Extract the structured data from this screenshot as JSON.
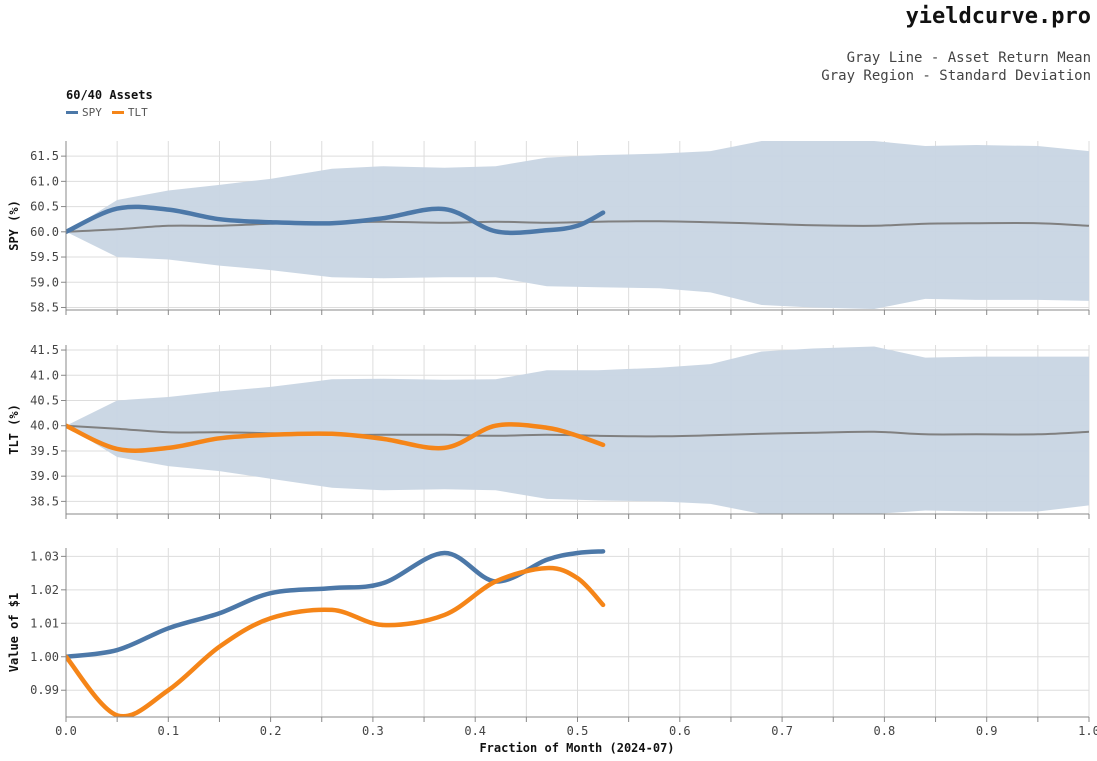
{
  "header": {
    "brand": "yieldcurve.pro",
    "note_line1": "Gray Line - Asset Return Mean",
    "note_line2": "Gray Region - Standard Deviation"
  },
  "legend": {
    "title": "60/40 Assets",
    "items": [
      {
        "name": "SPY",
        "color": "#4c78a8"
      },
      {
        "name": "TLT",
        "color": "#f58518"
      }
    ]
  },
  "colors": {
    "band": "#c8d5e3",
    "mean": "#808080",
    "spy": "#4c78a8",
    "tlt": "#f58518"
  },
  "chart_data": [
    {
      "type": "line",
      "ylabel": "SPY (%)",
      "ylim": [
        58.45,
        61.8
      ],
      "yticks": [
        58.5,
        59.0,
        59.5,
        60.0,
        60.5,
        61.0,
        61.5
      ],
      "tick_decimals": 1,
      "xlim": [
        0,
        1
      ],
      "band": {
        "x": [
          0,
          0.05,
          0.1,
          0.15,
          0.2,
          0.26,
          0.31,
          0.37,
          0.42,
          0.47,
          0.52,
          0.58,
          0.63,
          0.68,
          0.73,
          0.79,
          0.84,
          0.89,
          0.95,
          1.0
        ],
        "upper": [
          60.0,
          60.63,
          60.82,
          60.93,
          61.05,
          61.25,
          61.3,
          61.27,
          61.3,
          61.47,
          61.52,
          61.55,
          61.6,
          61.8,
          61.85,
          61.8,
          61.7,
          61.72,
          61.7,
          61.6
        ],
        "lower": [
          60.0,
          59.5,
          59.45,
          59.33,
          59.24,
          59.1,
          59.08,
          59.1,
          59.1,
          58.92,
          58.9,
          58.88,
          58.8,
          58.55,
          58.5,
          58.47,
          58.67,
          58.65,
          58.65,
          58.63
        ]
      },
      "mean": {
        "x": [
          0,
          0.05,
          0.1,
          0.15,
          0.2,
          0.26,
          0.31,
          0.37,
          0.42,
          0.47,
          0.52,
          0.58,
          0.63,
          0.68,
          0.73,
          0.79,
          0.84,
          0.89,
          0.95,
          1.0
        ],
        "y": [
          60.0,
          60.05,
          60.12,
          60.12,
          60.16,
          60.18,
          60.2,
          60.18,
          60.2,
          60.18,
          60.2,
          60.21,
          60.19,
          60.16,
          60.13,
          60.12,
          60.16,
          60.17,
          60.17,
          60.12
        ]
      },
      "series": [
        {
          "name": "SPY",
          "x": [
            0,
            0.05,
            0.1,
            0.15,
            0.2,
            0.26,
            0.31,
            0.37,
            0.42,
            0.47,
            0.5,
            0.525
          ],
          "y": [
            60.0,
            60.46,
            60.44,
            60.25,
            60.19,
            60.17,
            60.27,
            60.45,
            60.01,
            60.03,
            60.12,
            60.38
          ]
        }
      ]
    },
    {
      "type": "line",
      "ylabel": "TLT (%)",
      "ylim": [
        38.25,
        41.6
      ],
      "yticks": [
        38.5,
        39.0,
        39.5,
        40.0,
        40.5,
        41.0,
        41.5
      ],
      "tick_decimals": 1,
      "xlim": [
        0,
        1
      ],
      "band": {
        "x": [
          0,
          0.05,
          0.1,
          0.15,
          0.2,
          0.26,
          0.31,
          0.37,
          0.42,
          0.47,
          0.52,
          0.58,
          0.63,
          0.68,
          0.73,
          0.79,
          0.84,
          0.89,
          0.95,
          1.0
        ],
        "upper": [
          40.0,
          40.5,
          40.57,
          40.68,
          40.77,
          40.92,
          40.93,
          40.91,
          40.92,
          41.1,
          41.1,
          41.15,
          41.22,
          41.47,
          41.53,
          41.57,
          41.35,
          41.37,
          41.37,
          41.37
        ],
        "lower": [
          40.0,
          39.38,
          39.2,
          39.1,
          38.95,
          38.77,
          38.72,
          38.74,
          38.72,
          38.55,
          38.52,
          38.5,
          38.45,
          38.25,
          38.25,
          38.25,
          38.32,
          38.3,
          38.3,
          38.42
        ]
      },
      "mean": {
        "x": [
          0,
          0.05,
          0.1,
          0.15,
          0.2,
          0.26,
          0.31,
          0.37,
          0.42,
          0.47,
          0.52,
          0.58,
          0.63,
          0.68,
          0.73,
          0.79,
          0.84,
          0.89,
          0.95,
          1.0
        ],
        "y": [
          40.0,
          39.94,
          39.87,
          39.87,
          39.85,
          39.82,
          39.82,
          39.82,
          39.8,
          39.82,
          39.8,
          39.79,
          39.81,
          39.84,
          39.86,
          39.88,
          39.83,
          39.83,
          39.83,
          39.88
        ]
      },
      "series": [
        {
          "name": "TLT",
          "x": [
            0,
            0.05,
            0.1,
            0.15,
            0.2,
            0.26,
            0.31,
            0.37,
            0.42,
            0.47,
            0.5,
            0.525
          ],
          "y": [
            40.0,
            39.54,
            39.56,
            39.75,
            39.82,
            39.84,
            39.74,
            39.56,
            40.0,
            39.96,
            39.8,
            39.62
          ]
        }
      ]
    },
    {
      "type": "line",
      "ylabel": "Value of $1",
      "xlabel": "Fraction of Month (2024-07)",
      "ylim": [
        0.982,
        1.0325
      ],
      "yticks": [
        0.99,
        1.0,
        1.01,
        1.02,
        1.03
      ],
      "tick_decimals": 2,
      "xlim": [
        0,
        1
      ],
      "xticks": [
        0.0,
        0.1,
        0.2,
        0.3,
        0.4,
        0.5,
        0.6,
        0.7,
        0.8,
        0.9,
        1.0
      ],
      "series": [
        {
          "name": "SPY",
          "x": [
            0,
            0.05,
            0.1,
            0.15,
            0.2,
            0.26,
            0.31,
            0.37,
            0.42,
            0.47,
            0.5,
            0.525
          ],
          "y": [
            1.0,
            1.002,
            1.0085,
            1.013,
            1.019,
            1.0205,
            1.022,
            1.031,
            1.0225,
            1.029,
            1.031,
            1.0315
          ]
        },
        {
          "name": "TLT",
          "x": [
            0,
            0.05,
            0.1,
            0.15,
            0.2,
            0.26,
            0.31,
            0.37,
            0.42,
            0.47,
            0.5,
            0.525
          ],
          "y": [
            1.0,
            0.9825,
            0.99,
            1.003,
            1.0115,
            1.014,
            1.0095,
            1.0125,
            1.0225,
            1.0265,
            1.0235,
            1.0155
          ]
        }
      ]
    }
  ]
}
